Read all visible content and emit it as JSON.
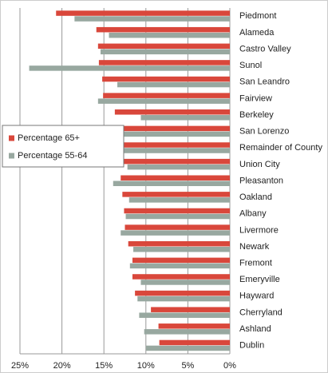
{
  "chart_data": {
    "type": "barh",
    "categories": [
      "Piedmont",
      "Alameda",
      "Castro Valley",
      "Sunol",
      "San Leandro",
      "Fairview",
      "Berkeley",
      "San Lorenzo",
      "Remainder of County",
      "Union City",
      "Pleasanton",
      "Oakland",
      "Albany",
      "Livermore",
      "Newark",
      "Fremont",
      "Emeryville",
      "Hayward",
      "Cherryland",
      "Ashland",
      "Dublin"
    ],
    "series": [
      {
        "name": "Percentage 65+",
        "color": "#d9473b",
        "values": [
          20.7,
          15.9,
          15.7,
          15.6,
          15.2,
          15.1,
          13.7,
          13.5,
          13.3,
          13.2,
          13.0,
          12.8,
          12.6,
          12.5,
          12.1,
          11.6,
          11.6,
          11.3,
          9.4,
          8.5,
          8.4
        ]
      },
      {
        "name": "Percentage 55-64",
        "color": "#98a8a0",
        "values": [
          18.5,
          14.4,
          15.4,
          23.9,
          13.4,
          15.7,
          10.6,
          13.1,
          13.0,
          12.2,
          13.9,
          12.0,
          12.4,
          13.0,
          11.5,
          11.9,
          10.6,
          11.0,
          10.8,
          10.2,
          10.0
        ]
      }
    ],
    "xlim": [
      25,
      0
    ],
    "xticks": [
      {
        "value": 25,
        "label": "25%"
      },
      {
        "value": 20,
        "label": "20%"
      },
      {
        "value": 15,
        "label": "15%"
      },
      {
        "value": 10,
        "label": "10%"
      },
      {
        "value": 5,
        "label": "5%"
      },
      {
        "value": 0,
        "label": "0%"
      }
    ],
    "grid": true
  }
}
